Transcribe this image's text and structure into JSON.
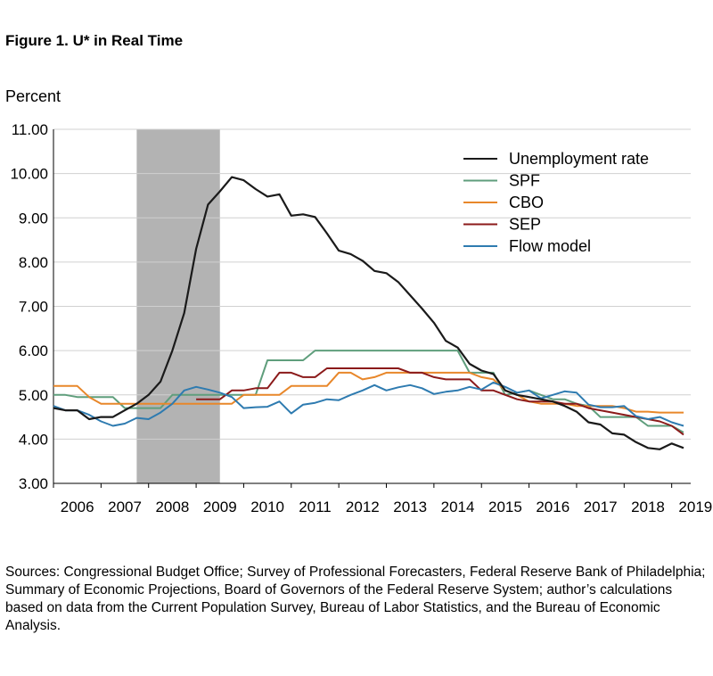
{
  "figure_title": "Figure 1. U* in Real Time",
  "sources": "Sources: Congressional Budget Office; Survey of Professional Forecasters, Federal Reserve Bank of Philadelphia; Summary of Economic Projections, Board of Governors of the Federal Reserve System; author’s calculations based on data from the Current Population Survey, Bureau of Labor Statistics, and the Bureau of Economic Analysis.",
  "chart_data": {
    "type": "line",
    "title": "",
    "ylabel": "Percent",
    "xlabel": "",
    "ylim": [
      3.0,
      11.0
    ],
    "xlim": [
      2006.0,
      2019.4
    ],
    "yticks": [
      "3.00",
      "4.00",
      "5.00",
      "6.00",
      "7.00",
      "8.00",
      "9.00",
      "10.00",
      "11.00"
    ],
    "xticks": [
      "2006",
      "2007",
      "2008",
      "2009",
      "2010",
      "2011",
      "2012",
      "2013",
      "2014",
      "2015",
      "2016",
      "2017",
      "2018",
      "2019"
    ],
    "grid": true,
    "legend_position": "top-right",
    "recession_shading": [
      2007.75,
      2009.5
    ],
    "colors": {
      "Unemployment rate": "#1a1a1a",
      "SPF": "#5f9e7c",
      "CBO": "#e8872a",
      "SEP": "#8b1a1a",
      "Flow model": "#2e7bb0",
      "recession": "#b3b3b3",
      "grid": "#d0d0d0"
    },
    "series": [
      {
        "name": "Unemployment rate",
        "x": [
          2006.0,
          2006.25,
          2006.5,
          2006.75,
          2007.0,
          2007.25,
          2007.5,
          2007.75,
          2008.0,
          2008.25,
          2008.5,
          2008.75,
          2009.0,
          2009.25,
          2009.5,
          2009.75,
          2010.0,
          2010.25,
          2010.5,
          2010.75,
          2011.0,
          2011.25,
          2011.5,
          2011.75,
          2012.0,
          2012.25,
          2012.5,
          2012.75,
          2013.0,
          2013.25,
          2013.5,
          2013.75,
          2014.0,
          2014.25,
          2014.5,
          2014.75,
          2015.0,
          2015.25,
          2015.5,
          2015.75,
          2016.0,
          2016.25,
          2016.5,
          2016.75,
          2017.0,
          2017.25,
          2017.5,
          2017.75,
          2018.0,
          2018.25,
          2018.5,
          2018.75,
          2019.0,
          2019.25
        ],
        "values": [
          4.7,
          4.65,
          4.65,
          4.45,
          4.5,
          4.5,
          4.65,
          4.8,
          5.0,
          5.3,
          6.0,
          6.85,
          8.3,
          9.3,
          9.6,
          9.92,
          9.85,
          9.65,
          9.48,
          9.53,
          9.05,
          9.08,
          9.02,
          8.65,
          8.26,
          8.18,
          8.03,
          7.8,
          7.75,
          7.55,
          7.25,
          6.95,
          6.63,
          6.22,
          6.07,
          5.7,
          5.55,
          5.47,
          5.1,
          5.0,
          4.95,
          4.9,
          4.85,
          4.75,
          4.62,
          4.38,
          4.33,
          4.13,
          4.1,
          3.93,
          3.8,
          3.77,
          3.9,
          3.8
        ]
      },
      {
        "name": "SPF",
        "x": [
          2006.0,
          2006.25,
          2006.5,
          2006.75,
          2007.0,
          2007.25,
          2007.5,
          2007.75,
          2008.0,
          2008.25,
          2008.5,
          2008.75,
          2009.0,
          2009.25,
          2009.5,
          2009.75,
          2010.0,
          2010.25,
          2010.5,
          2010.75,
          2011.0,
          2011.25,
          2011.5,
          2011.75,
          2012.0,
          2012.25,
          2012.5,
          2012.75,
          2013.0,
          2013.25,
          2013.5,
          2013.75,
          2014.0,
          2014.25,
          2014.5,
          2014.75,
          2015.0,
          2015.25,
          2015.5,
          2015.75,
          2016.0,
          2016.25,
          2016.5,
          2016.75,
          2017.0,
          2017.25,
          2017.5,
          2017.75,
          2018.0,
          2018.25,
          2018.5,
          2018.75,
          2019.0,
          2019.25
        ],
        "values": [
          5.0,
          5.0,
          4.95,
          4.95,
          4.95,
          4.95,
          4.7,
          4.7,
          4.7,
          4.7,
          5.0,
          5.0,
          5.0,
          5.0,
          5.0,
          5.0,
          5.0,
          5.0,
          5.78,
          5.78,
          5.78,
          5.78,
          6.0,
          6.0,
          6.0,
          6.0,
          6.0,
          6.0,
          6.0,
          6.0,
          6.0,
          6.0,
          6.0,
          6.0,
          6.0,
          5.5,
          5.5,
          5.5,
          5.0,
          5.05,
          5.1,
          5.0,
          4.9,
          4.9,
          4.8,
          4.75,
          4.5,
          4.5,
          4.5,
          4.5,
          4.3,
          4.3,
          4.3,
          4.15
        ]
      },
      {
        "name": "CBO",
        "x": [
          2006.0,
          2006.25,
          2006.5,
          2006.75,
          2007.0,
          2007.25,
          2007.5,
          2007.75,
          2008.0,
          2008.25,
          2008.5,
          2008.75,
          2009.0,
          2009.25,
          2009.5,
          2009.75,
          2010.0,
          2010.25,
          2010.5,
          2010.75,
          2011.0,
          2011.25,
          2011.5,
          2011.75,
          2012.0,
          2012.25,
          2012.5,
          2012.75,
          2013.0,
          2013.25,
          2013.5,
          2013.75,
          2014.0,
          2014.25,
          2014.5,
          2014.75,
          2015.0,
          2015.25,
          2015.5,
          2015.75,
          2016.0,
          2016.25,
          2016.5,
          2016.75,
          2017.0,
          2017.25,
          2017.5,
          2017.75,
          2018.0,
          2018.25,
          2018.5,
          2018.75,
          2019.0,
          2019.25
        ],
        "values": [
          5.2,
          5.2,
          5.2,
          4.95,
          4.8,
          4.8,
          4.8,
          4.8,
          4.8,
          4.8,
          4.8,
          4.8,
          4.8,
          4.8,
          4.8,
          4.8,
          5.0,
          5.0,
          5.0,
          5.0,
          5.2,
          5.2,
          5.2,
          5.2,
          5.5,
          5.5,
          5.35,
          5.4,
          5.5,
          5.5,
          5.5,
          5.5,
          5.5,
          5.5,
          5.5,
          5.5,
          5.4,
          5.35,
          5.1,
          5.0,
          4.85,
          4.8,
          4.8,
          4.8,
          4.75,
          4.75,
          4.75,
          4.75,
          4.7,
          4.62,
          4.62,
          4.6,
          4.6,
          4.6
        ]
      },
      {
        "name": "SEP",
        "x": [
          2009.0,
          2009.25,
          2009.5,
          2009.75,
          2010.0,
          2010.25,
          2010.5,
          2010.75,
          2011.0,
          2011.25,
          2011.5,
          2011.75,
          2012.0,
          2012.25,
          2012.5,
          2012.75,
          2013.0,
          2013.25,
          2013.5,
          2013.75,
          2014.0,
          2014.25,
          2014.5,
          2014.75,
          2015.0,
          2015.25,
          2015.5,
          2015.75,
          2016.0,
          2016.25,
          2016.5,
          2016.75,
          2017.0,
          2017.25,
          2017.5,
          2017.75,
          2018.0,
          2018.25,
          2018.5,
          2018.75,
          2019.0,
          2019.25
        ],
        "values": [
          4.9,
          4.9,
          4.9,
          5.1,
          5.1,
          5.15,
          5.15,
          5.5,
          5.5,
          5.4,
          5.4,
          5.6,
          5.6,
          5.6,
          5.6,
          5.6,
          5.6,
          5.6,
          5.5,
          5.5,
          5.4,
          5.35,
          5.35,
          5.35,
          5.1,
          5.1,
          5.0,
          4.9,
          4.85,
          4.85,
          4.85,
          4.8,
          4.8,
          4.7,
          4.65,
          4.6,
          4.55,
          4.5,
          4.45,
          4.4,
          4.3,
          4.1
        ]
      },
      {
        "name": "Flow model",
        "x": [
          2006.0,
          2006.25,
          2006.5,
          2006.75,
          2007.0,
          2007.25,
          2007.5,
          2007.75,
          2008.0,
          2008.25,
          2008.5,
          2008.75,
          2009.0,
          2009.25,
          2009.5,
          2009.75,
          2010.0,
          2010.25,
          2010.5,
          2010.75,
          2011.0,
          2011.25,
          2011.5,
          2011.75,
          2012.0,
          2012.25,
          2012.5,
          2012.75,
          2013.0,
          2013.25,
          2013.5,
          2013.75,
          2014.0,
          2014.25,
          2014.5,
          2014.75,
          2015.0,
          2015.25,
          2015.5,
          2015.75,
          2016.0,
          2016.25,
          2016.5,
          2016.75,
          2017.0,
          2017.25,
          2017.5,
          2017.75,
          2018.0,
          2018.25,
          2018.5,
          2018.75,
          2019.0,
          2019.25
        ],
        "values": [
          4.75,
          4.65,
          4.65,
          4.55,
          4.4,
          4.3,
          4.35,
          4.48,
          4.45,
          4.6,
          4.8,
          5.1,
          5.18,
          5.12,
          5.05,
          4.95,
          4.7,
          4.72,
          4.73,
          4.85,
          4.58,
          4.78,
          4.82,
          4.9,
          4.88,
          5.0,
          5.1,
          5.22,
          5.1,
          5.17,
          5.22,
          5.15,
          5.02,
          5.07,
          5.1,
          5.18,
          5.12,
          5.28,
          5.18,
          5.05,
          5.1,
          4.92,
          5.0,
          5.08,
          5.05,
          4.78,
          4.72,
          4.72,
          4.75,
          4.52,
          4.45,
          4.5,
          4.38,
          4.3
        ]
      }
    ]
  }
}
